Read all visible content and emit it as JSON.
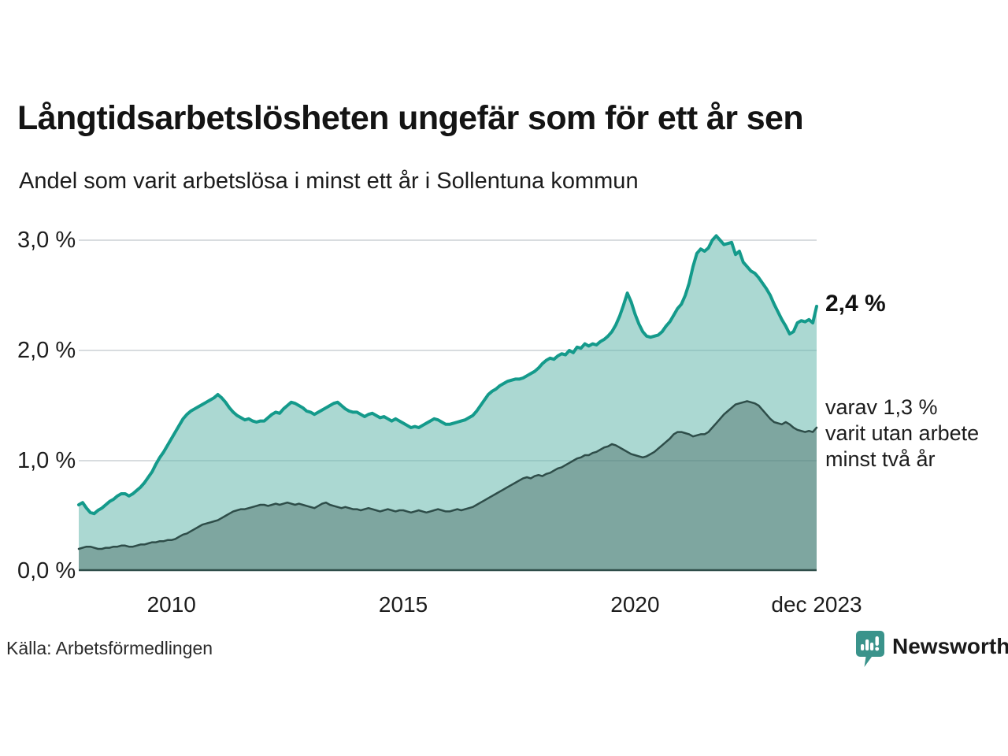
{
  "header": {
    "title": "Långtidsarbetslösheten ungefär som för ett år sen",
    "subtitle": "Andel som varit arbetslösa i minst ett år i Sollentuna kommun"
  },
  "chart_data": {
    "type": "area",
    "title": "Långtidsarbetslösheten ungefär som för ett år sen",
    "subtitle": "Andel som varit arbetslösa i minst ett år i Sollentuna kommun",
    "x_start": "2008-01",
    "x_end": "2023-12",
    "points_per_year": 12,
    "ylim": [
      0,
      3.1
    ],
    "grid": true,
    "colors": {
      "grid": "#d8dcdf",
      "baseline": "#2e4d49",
      "accent": "#149a8b",
      "dark": "#2e4d49"
    },
    "y_ticks": [
      {
        "label": "3,0 %",
        "value": 3.0
      },
      {
        "label": "2,0 %",
        "value": 2.0
      },
      {
        "label": "1,0 %",
        "value": 1.0
      },
      {
        "label": "0,0 %",
        "value": 0.0
      }
    ],
    "x_ticks": [
      {
        "label": "2010",
        "month_index": 24
      },
      {
        "label": "2015",
        "month_index": 84
      },
      {
        "label": "2020",
        "month_index": 144
      },
      {
        "label": "dec 2023",
        "month_index": 191
      }
    ],
    "series": [
      {
        "name": "arbetslösa minst ett år",
        "color": "#149a8b",
        "width": 4,
        "fill": "rgba(102,184,173,0.55)",
        "values": [
          0.6,
          0.62,
          0.57,
          0.53,
          0.52,
          0.55,
          0.57,
          0.6,
          0.63,
          0.65,
          0.68,
          0.7,
          0.7,
          0.68,
          0.7,
          0.73,
          0.76,
          0.8,
          0.85,
          0.9,
          0.97,
          1.03,
          1.08,
          1.14,
          1.2,
          1.26,
          1.32,
          1.38,
          1.42,
          1.45,
          1.47,
          1.49,
          1.51,
          1.53,
          1.55,
          1.57,
          1.6,
          1.57,
          1.53,
          1.48,
          1.44,
          1.41,
          1.39,
          1.37,
          1.38,
          1.36,
          1.35,
          1.36,
          1.36,
          1.39,
          1.42,
          1.44,
          1.43,
          1.47,
          1.5,
          1.53,
          1.52,
          1.5,
          1.48,
          1.45,
          1.44,
          1.42,
          1.44,
          1.46,
          1.48,
          1.5,
          1.52,
          1.53,
          1.5,
          1.47,
          1.45,
          1.44,
          1.44,
          1.42,
          1.4,
          1.42,
          1.43,
          1.41,
          1.39,
          1.4,
          1.38,
          1.36,
          1.38,
          1.36,
          1.34,
          1.32,
          1.3,
          1.31,
          1.3,
          1.32,
          1.34,
          1.36,
          1.38,
          1.37,
          1.35,
          1.33,
          1.33,
          1.34,
          1.35,
          1.36,
          1.37,
          1.39,
          1.41,
          1.45,
          1.5,
          1.55,
          1.6,
          1.63,
          1.65,
          1.68,
          1.7,
          1.72,
          1.73,
          1.74,
          1.74,
          1.75,
          1.77,
          1.79,
          1.81,
          1.84,
          1.88,
          1.91,
          1.93,
          1.92,
          1.95,
          1.97,
          1.96,
          2.0,
          1.98,
          2.03,
          2.02,
          2.06,
          2.04,
          2.06,
          2.05,
          2.08,
          2.1,
          2.13,
          2.17,
          2.23,
          2.31,
          2.41,
          2.52,
          2.44,
          2.33,
          2.24,
          2.17,
          2.13,
          2.12,
          2.13,
          2.14,
          2.17,
          2.22,
          2.26,
          2.32,
          2.38,
          2.42,
          2.5,
          2.61,
          2.76,
          2.88,
          2.92,
          2.9,
          2.93,
          3.0,
          3.04,
          3.0,
          2.96,
          2.97,
          2.98,
          2.87,
          2.9,
          2.8,
          2.76,
          2.72,
          2.7,
          2.66,
          2.61,
          2.56,
          2.5,
          2.42,
          2.35,
          2.28,
          2.22,
          2.15,
          2.17,
          2.25,
          2.27,
          2.26,
          2.28,
          2.25,
          2.4
        ]
      },
      {
        "name": "varav utan arbete minst två år",
        "color": "#2e4d49",
        "width": 2.5,
        "fill": "rgba(47,77,73,0.36)",
        "values": [
          0.2,
          0.21,
          0.22,
          0.22,
          0.21,
          0.2,
          0.2,
          0.21,
          0.21,
          0.22,
          0.22,
          0.23,
          0.23,
          0.22,
          0.22,
          0.23,
          0.24,
          0.24,
          0.25,
          0.26,
          0.26,
          0.27,
          0.27,
          0.28,
          0.28,
          0.29,
          0.31,
          0.33,
          0.34,
          0.36,
          0.38,
          0.4,
          0.42,
          0.43,
          0.44,
          0.45,
          0.46,
          0.48,
          0.5,
          0.52,
          0.54,
          0.55,
          0.56,
          0.56,
          0.57,
          0.58,
          0.59,
          0.6,
          0.6,
          0.59,
          0.6,
          0.61,
          0.6,
          0.61,
          0.62,
          0.61,
          0.6,
          0.61,
          0.6,
          0.59,
          0.58,
          0.57,
          0.59,
          0.61,
          0.62,
          0.6,
          0.59,
          0.58,
          0.57,
          0.58,
          0.57,
          0.56,
          0.56,
          0.55,
          0.56,
          0.57,
          0.56,
          0.55,
          0.54,
          0.55,
          0.56,
          0.55,
          0.54,
          0.55,
          0.55,
          0.54,
          0.53,
          0.54,
          0.55,
          0.54,
          0.53,
          0.54,
          0.55,
          0.56,
          0.55,
          0.54,
          0.54,
          0.55,
          0.56,
          0.55,
          0.56,
          0.57,
          0.58,
          0.6,
          0.62,
          0.64,
          0.66,
          0.68,
          0.7,
          0.72,
          0.74,
          0.76,
          0.78,
          0.8,
          0.82,
          0.84,
          0.85,
          0.84,
          0.86,
          0.87,
          0.86,
          0.88,
          0.89,
          0.91,
          0.93,
          0.94,
          0.96,
          0.98,
          1.0,
          1.02,
          1.03,
          1.05,
          1.05,
          1.07,
          1.08,
          1.1,
          1.12,
          1.13,
          1.15,
          1.14,
          1.12,
          1.1,
          1.08,
          1.06,
          1.05,
          1.04,
          1.03,
          1.04,
          1.06,
          1.08,
          1.11,
          1.14,
          1.17,
          1.2,
          1.24,
          1.26,
          1.26,
          1.25,
          1.24,
          1.22,
          1.23,
          1.24,
          1.24,
          1.26,
          1.3,
          1.34,
          1.38,
          1.42,
          1.45,
          1.48,
          1.51,
          1.52,
          1.53,
          1.54,
          1.53,
          1.52,
          1.5,
          1.46,
          1.42,
          1.38,
          1.35,
          1.34,
          1.33,
          1.35,
          1.33,
          1.3,
          1.28,
          1.27,
          1.26,
          1.27,
          1.26,
          1.3
        ]
      }
    ],
    "annotations": [
      {
        "text": "2,4 %",
        "anchor_value": 2.4
      },
      {
        "lines": [
          "varav 1,3 %",
          "varit utan arbete",
          "minst två år"
        ],
        "anchor_value": 1.3
      }
    ]
  },
  "footer": {
    "source": "Källa: Arbetsförmedlingen",
    "brand": "Newsworthy",
    "brand_color": "#3a938b"
  }
}
